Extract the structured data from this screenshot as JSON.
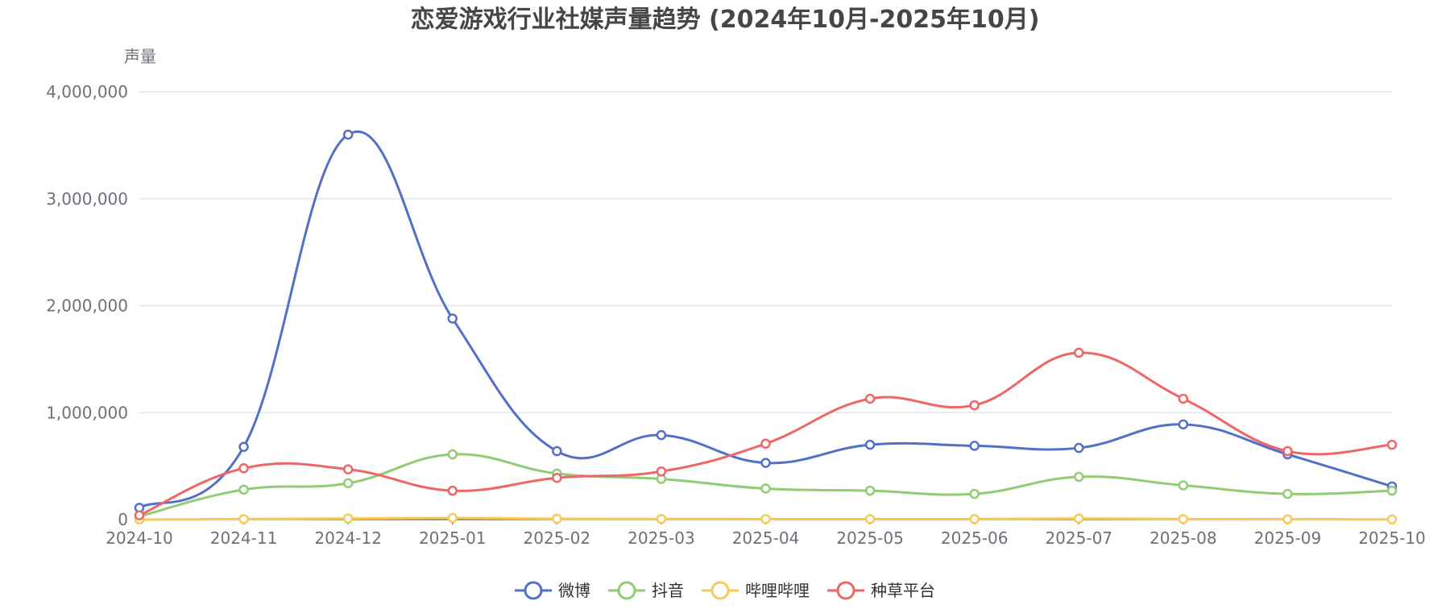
{
  "chart_data": {
    "type": "line",
    "title": "恋爱游戏行业社媒声量趋势 (2024年10月-2025年10月)",
    "ylabel": "声量",
    "xlabel": "",
    "ylim": [
      0,
      4000000
    ],
    "yticks": [
      0,
      1000000,
      2000000,
      3000000,
      4000000
    ],
    "ytick_labels": [
      "0",
      "1,000,000",
      "2,000,000",
      "3,000,000",
      "4,000,000"
    ],
    "categories": [
      "2024-10",
      "2024-11",
      "2024-12",
      "2025-01",
      "2025-02",
      "2025-03",
      "2025-04",
      "2025-05",
      "2025-06",
      "2025-07",
      "2025-08",
      "2025-09",
      "2025-10"
    ],
    "grid": true,
    "smooth": true,
    "legend_position": "bottom-center",
    "series": [
      {
        "name": "微博",
        "color": "#5470C6",
        "values": [
          110000,
          680000,
          3600000,
          1880000,
          640000,
          790000,
          530000,
          700000,
          690000,
          670000,
          890000,
          610000,
          310000
        ]
      },
      {
        "name": "抖音",
        "color": "#91CC75",
        "values": [
          30000,
          280000,
          340000,
          610000,
          430000,
          380000,
          290000,
          270000,
          240000,
          400000,
          320000,
          240000,
          270000
        ]
      },
      {
        "name": "哔哩哔哩",
        "color": "#FAC858",
        "values": [
          0,
          5000,
          10000,
          15000,
          8000,
          6000,
          5000,
          5000,
          5000,
          10000,
          5000,
          3000,
          2000
        ]
      },
      {
        "name": "种草平台",
        "color": "#EE6666",
        "values": [
          40000,
          480000,
          470000,
          270000,
          390000,
          450000,
          710000,
          1130000,
          1070000,
          1560000,
          1130000,
          640000,
          700000
        ]
      }
    ]
  }
}
